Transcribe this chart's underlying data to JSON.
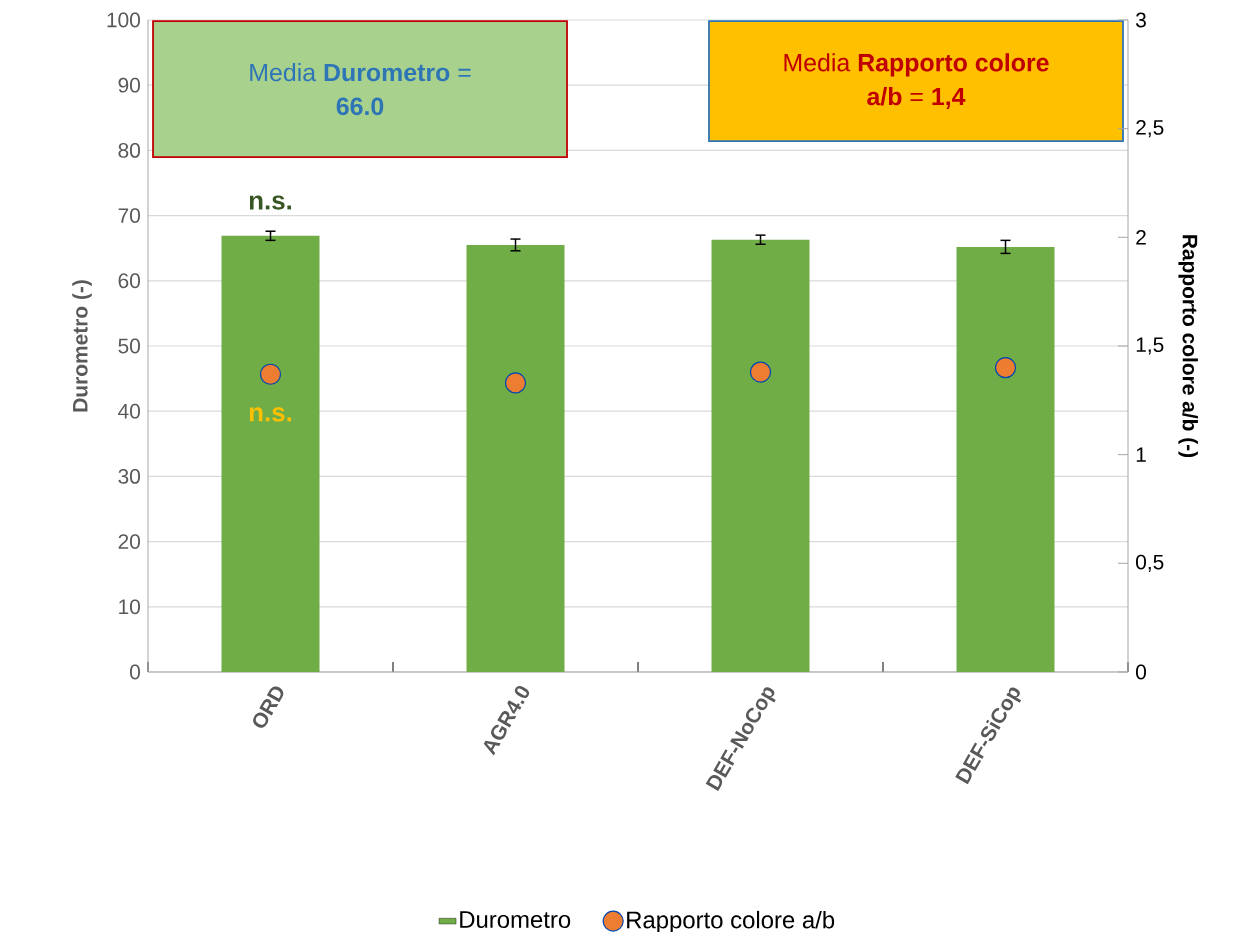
{
  "chart_data": {
    "type": "bar",
    "categories": [
      "ORD",
      "AGR4.0",
      "DEF-NoCop",
      "DEF-SiCop"
    ],
    "series": [
      {
        "name": "Durometro",
        "color": "#70ad47",
        "values": [
          66.9,
          65.5,
          66.3,
          65.2
        ],
        "errors": [
          0.7,
          0.9,
          0.7,
          1.0
        ]
      },
      {
        "name": "Rapporto colore a/b",
        "type": "scatter",
        "axis": "y2",
        "color": "#ed7d31",
        "values": [
          1.37,
          1.33,
          1.38,
          1.4
        ]
      }
    ],
    "ylabel": "Durometro (-)",
    "y2label": "Rapporto colore a/b  (-)",
    "ylim": [
      0,
      100
    ],
    "yticks": [
      0,
      10,
      20,
      30,
      40,
      50,
      60,
      70,
      80,
      90,
      100
    ],
    "y2lim": [
      0,
      3
    ],
    "y2ticks": [
      0,
      {
        "value": 0.5,
        "label": "0,5"
      },
      1,
      {
        "value": 1.5,
        "label": "1,5"
      },
      2,
      {
        "value": 2.5,
        "label": "2,5"
      },
      3
    ],
    "grid": "y",
    "legend": "bottom",
    "annotations": [
      "Media **Durometro** = **66.0**",
      "Media **Rapporto colore a/b** = **1,4**",
      "n.s.",
      "n.s."
    ]
  }
}
